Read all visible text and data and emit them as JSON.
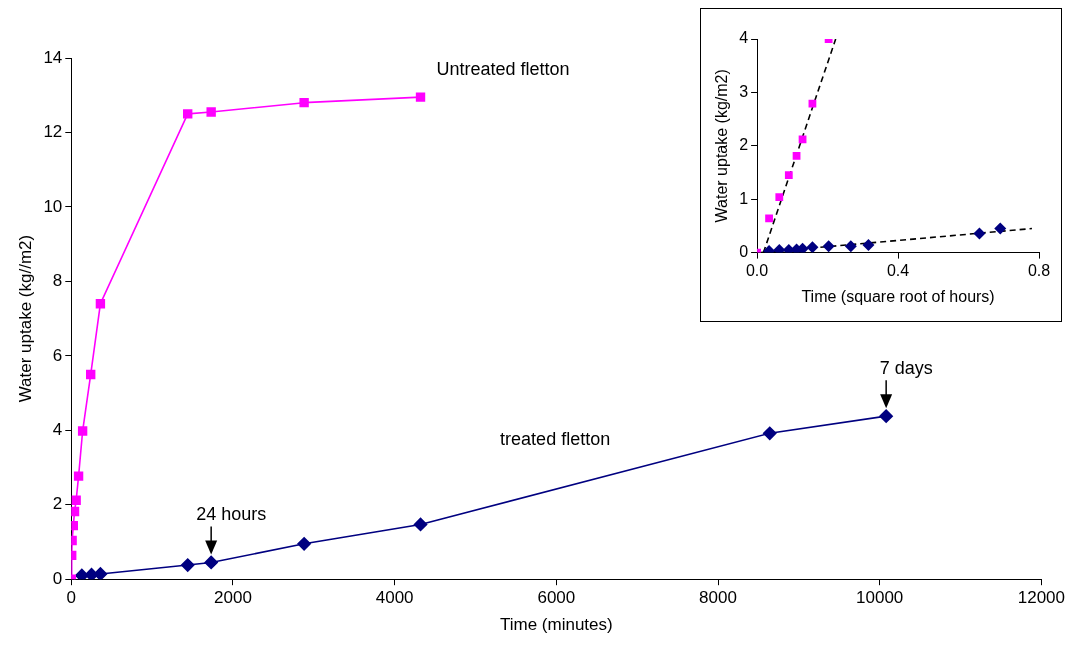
{
  "chart_data": [
    {
      "type": "line",
      "xlabel": "Time (minutes)",
      "ylabel": "Water uptake (kg//m2)",
      "xlim": [
        0,
        12000
      ],
      "xticks": [
        0,
        2000,
        4000,
        6000,
        8000,
        10000,
        12000
      ],
      "ylim": [
        0,
        14
      ],
      "yticks": [
        0,
        2,
        4,
        6,
        8,
        10,
        12,
        14
      ],
      "grid": false,
      "legend": false,
      "series": [
        {
          "name": "Untreated fletton",
          "color": "#ff00ff",
          "marker": "square",
          "x": [
            0,
            5,
            10,
            25,
            40,
            60,
            90,
            140,
            240,
            360,
            1440,
            1730,
            2880,
            4320
          ],
          "values": [
            0,
            0.64,
            1.04,
            1.44,
            1.82,
            2.12,
            2.77,
            3.98,
            5.5,
            7.4,
            12.5,
            12.55,
            12.8,
            12.95
          ]
        },
        {
          "name": "treated fletton",
          "color": "#000080",
          "marker": "diamond",
          "x": [
            130,
            250,
            360,
            1440,
            1730,
            2880,
            4320,
            8640,
            10080
          ],
          "values": [
            0.1,
            0.12,
            0.14,
            0.38,
            0.45,
            0.95,
            1.47,
            3.92,
            4.38
          ]
        }
      ],
      "annotations": [
        {
          "text": "24 hours",
          "x": 1730,
          "y": 0.45
        },
        {
          "text": "7 days",
          "x": 10080,
          "y": 4.38
        }
      ]
    },
    {
      "type": "scatter",
      "xlabel": "Time (square root of hours)",
      "ylabel": "Water uptake (kg/m2)",
      "xlim": [
        0,
        0.8
      ],
      "xticks": [
        {
          "value": 0,
          "label": "0.0"
        },
        {
          "value": 0.4,
          "label": "0.4"
        },
        {
          "value": 0.8,
          "label": "0.8"
        }
      ],
      "ylim": [
        0,
        4
      ],
      "yticks": [
        0,
        1,
        2,
        3,
        4
      ],
      "grid": false,
      "legend": false,
      "series": [
        {
          "color": "#ff00ff",
          "marker": "square",
          "x": [
            0,
            0.034,
            0.063,
            0.09,
            0.112,
            0.129,
            0.157,
            0.203
          ],
          "values": [
            0,
            0.64,
            1.04,
            1.45,
            1.81,
            2.12,
            2.79,
            4.0
          ]
        },
        {
          "color": "#000080",
          "marker": "diamond",
          "x": [
            0.034,
            0.063,
            0.09,
            0.112,
            0.129,
            0.157,
            0.203,
            0.266,
            0.316,
            0.631,
            0.69
          ],
          "values": [
            0.03,
            0.05,
            0.05,
            0.06,
            0.07,
            0.1,
            0.12,
            0.12,
            0.14,
            0.36,
            0.45
          ]
        },
        {
          "type": "line",
          "color": "#000000",
          "marker": "none",
          "line_style": "dashed",
          "x": [
            0.018,
            0.223
          ],
          "values": [
            0,
            4
          ]
        },
        {
          "type": "line",
          "color": "#000000",
          "marker": "none",
          "line_style": "dashed",
          "x": [
            0.01,
            0.78
          ],
          "values": [
            0,
            0.45
          ]
        }
      ]
    }
  ]
}
